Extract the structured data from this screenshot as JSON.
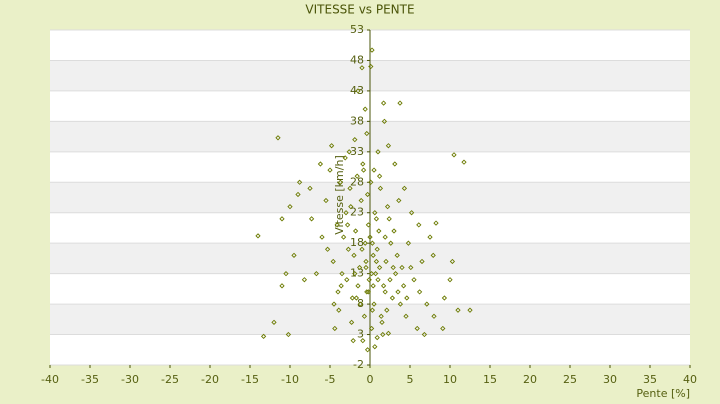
{
  "chart_data": {
    "type": "scatter",
    "title": "VITESSE vs PENTE",
    "x_label": "Pente [%]",
    "y_label": "Vitesse [km/h]",
    "color": "#6b7a00",
    "grid": true,
    "xlim": [
      -40,
      40
    ],
    "xticks": [
      -40,
      -35,
      -30,
      -25,
      -20,
      -15,
      -10,
      -5,
      0,
      5,
      10,
      15,
      20,
      25,
      30,
      35,
      40
    ],
    "ylim": [
      -2,
      53
    ],
    "yticks": [
      -2,
      3,
      8,
      13,
      18,
      23,
      28,
      33,
      38,
      43,
      48,
      53
    ],
    "x": [
      -13.3,
      -11.5,
      10.5,
      11.75,
      3.75,
      0.25,
      -1,
      -14,
      12.5,
      8.25,
      -0.5,
      0.3,
      1.2,
      -1.8,
      2.5,
      -2.7,
      0.8,
      -0.2,
      3.4,
      -3.5,
      1.9,
      -1.1,
      0.5,
      4.2,
      -4.1,
      2.2,
      -2.2,
      0.1,
      5.1,
      -5.3,
      1.4,
      -0.8,
      3.0,
      -3.0,
      6.2,
      -6.0,
      0.7,
      -1.5,
      2.8,
      -2.5,
      1.0,
      -0.4,
      4.8,
      -4.6,
      7.1,
      -7.3,
      0.2,
      -0.9,
      1.6,
      8.0,
      -8.2,
      9.3,
      -9.0,
      0.4,
      -0.6,
      1.1,
      -1.3,
      2.0,
      -2.0,
      3.2,
      -3.3,
      0.9,
      -0.1,
      1.7,
      -1.9,
      2.6,
      -2.8,
      4.0,
      -4.0,
      5.5,
      -5.5,
      0.0,
      0.6,
      -0.3,
      1.3,
      -1.6,
      2.4,
      -2.4,
      3.6,
      -3.7,
      6.5,
      -6.7,
      0.3,
      -0.7,
      1.5,
      -1.2,
      2.1,
      -2.3,
      3.8,
      -3.9,
      4.5,
      -4.4,
      5.9,
      6.8,
      -5.0,
      -6.2,
      -4.8,
      -3.1,
      -7.5,
      -8.8,
      -10.0,
      -11.0,
      -9.5,
      -10.5,
      -11.0,
      -12.0,
      -10.2,
      10.0,
      10.3,
      9.1,
      11.0,
      7.5,
      7.9,
      6.1,
      5.2,
      4.3,
      3.1,
      2.3,
      1.8,
      -0.6,
      -1.5,
      1.7,
      0.1,
      -1.9,
      -2.6,
      -0.9,
      0.5,
      1.2,
      -0.2,
      0.8,
      -0.5,
      0.2,
      1.0,
      -1.0,
      0.4,
      -0.4,
      1.9,
      -1.7,
      2.9,
      -2.9,
      3.5,
      -3.6,
      4.6,
      -4.5,
      0.6,
      -0.3,
      0.9,
      2.3,
      -2.1
    ],
    "values": [
      2.7,
      35.3,
      32.5,
      31.3,
      41,
      49.7,
      46.8,
      19.2,
      7,
      21.3,
      15,
      18,
      14,
      20,
      12,
      17,
      22,
      10,
      16,
      13,
      19,
      25,
      8,
      11,
      21,
      24,
      9,
      28,
      14,
      17,
      6,
      30,
      20,
      23,
      10,
      19,
      13,
      11,
      9,
      27,
      33,
      36,
      18,
      15,
      8,
      22,
      4,
      2,
      3,
      6,
      12,
      9,
      26,
      16,
      18,
      20,
      14,
      15,
      16,
      13,
      19,
      17,
      12,
      11,
      13,
      18,
      21,
      14,
      10,
      12,
      25,
      19,
      23,
      26,
      27,
      29,
      22,
      24,
      25,
      28,
      15,
      13,
      7,
      6,
      5,
      8,
      7,
      5,
      8,
      7,
      6,
      4,
      4,
      3,
      30,
      31,
      34,
      32,
      27,
      28,
      24,
      22,
      16,
      13,
      11,
      5,
      3,
      12,
      15,
      4,
      7,
      19,
      16,
      21,
      23,
      27,
      31,
      34,
      38,
      40,
      43,
      41,
      47,
      35,
      33,
      31,
      30,
      29,
      21,
      15,
      14,
      13,
      12,
      17,
      11,
      10,
      10,
      9,
      14,
      12,
      10,
      11,
      9,
      8,
      1,
      0.5,
      2.5,
      3.2,
      2.0
    ]
  }
}
